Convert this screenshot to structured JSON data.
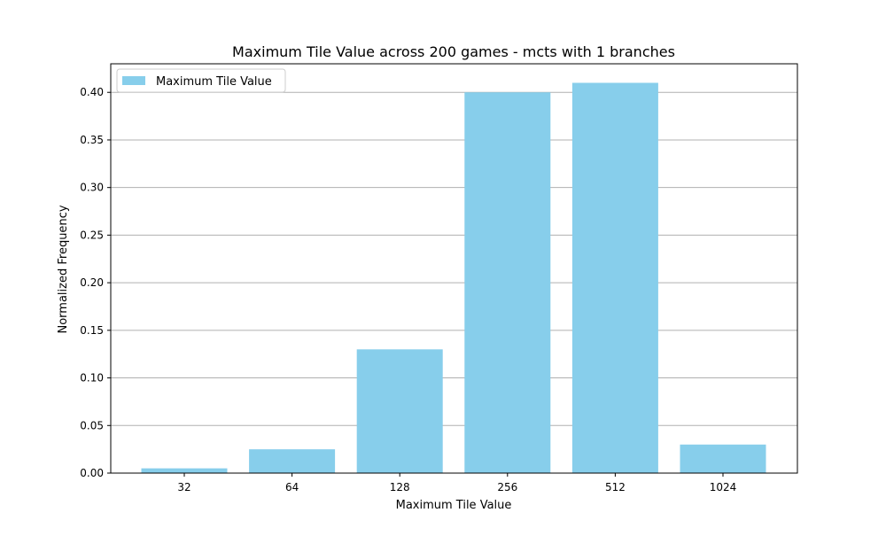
{
  "chart_data": {
    "type": "bar",
    "title": "Maximum Tile Value across 200 games - mcts with 1 branches",
    "xlabel": "Maximum Tile Value",
    "ylabel": "Normalized Frequency",
    "categories": [
      "32",
      "64",
      "128",
      "256",
      "512",
      "1024"
    ],
    "series": [
      {
        "name": "Maximum Tile Value",
        "values": [
          0.005,
          0.025,
          0.13,
          0.4,
          0.41,
          0.03
        ]
      }
    ],
    "ylim": [
      0,
      0.43
    ],
    "yticks": [
      "0.00",
      "0.05",
      "0.10",
      "0.15",
      "0.20",
      "0.25",
      "0.30",
      "0.35",
      "0.40"
    ],
    "grid": "horizontal",
    "legend_position": "top-left",
    "bar_color": "#87ceeb"
  }
}
